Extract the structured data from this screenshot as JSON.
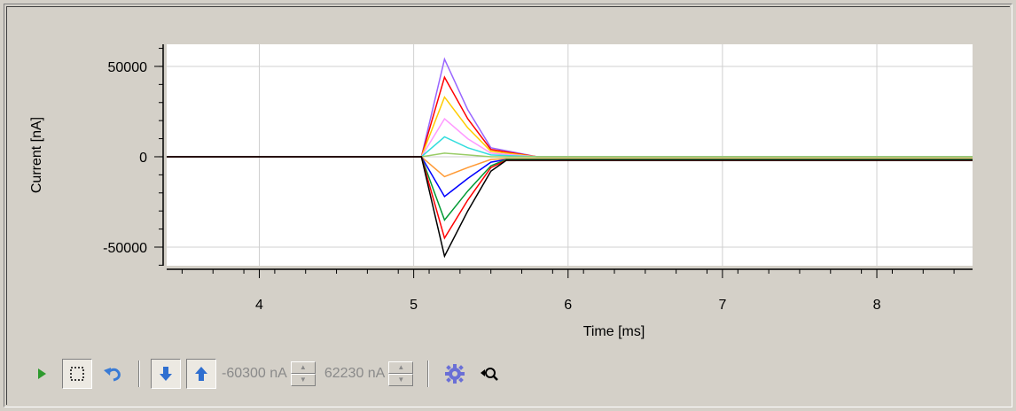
{
  "chart_data": {
    "type": "line",
    "xlabel": "Time [ms]",
    "ylabel": "Current [nA]",
    "xlim": [
      3.4,
      8.62
    ],
    "ylim": [
      -60300,
      62230
    ],
    "xticks": [
      4,
      5,
      6,
      7,
      8
    ],
    "yticks": [
      50000,
      0,
      -50000
    ],
    "xtick_labels": [
      "4",
      "5",
      "6",
      "7",
      "8"
    ],
    "ytick_labels": [
      "50000",
      "0",
      "-50000"
    ],
    "grid": true,
    "legend": "none",
    "series": [
      {
        "color": "#9966ff",
        "x": [
          3.4,
          5.05,
          5.2,
          5.35,
          5.5,
          5.8,
          8.62
        ],
        "y": [
          0,
          0,
          54000,
          26000,
          5000,
          0,
          0
        ]
      },
      {
        "color": "#ff0000",
        "x": [
          3.4,
          5.05,
          5.2,
          5.35,
          5.5,
          5.8,
          8.62
        ],
        "y": [
          0,
          0,
          44000,
          21000,
          4000,
          0,
          0
        ]
      },
      {
        "color": "#ffcc00",
        "x": [
          3.4,
          5.05,
          5.2,
          5.35,
          5.5,
          5.8,
          8.62
        ],
        "y": [
          0,
          0,
          33000,
          16000,
          3000,
          0,
          0
        ]
      },
      {
        "color": "#ff99ff",
        "x": [
          3.4,
          5.05,
          5.2,
          5.35,
          5.5,
          5.8,
          8.62
        ],
        "y": [
          0,
          0,
          21000,
          10000,
          2000,
          0,
          0
        ]
      },
      {
        "color": "#33dddd",
        "x": [
          3.4,
          5.05,
          5.2,
          5.35,
          5.5,
          5.8,
          8.62
        ],
        "y": [
          0,
          0,
          11000,
          5000,
          1000,
          0,
          0
        ]
      },
      {
        "color": "#99cc66",
        "x": [
          3.4,
          5.05,
          5.2,
          5.35,
          5.5,
          5.8,
          8.62
        ],
        "y": [
          0,
          0,
          2000,
          1000,
          0,
          0,
          0
        ]
      },
      {
        "color": "#ff9933",
        "x": [
          3.4,
          5.05,
          5.2,
          5.35,
          5.5,
          5.6,
          8.62
        ],
        "y": [
          0,
          0,
          -11000,
          -6000,
          -1500,
          -1000,
          -1000
        ]
      },
      {
        "color": "#0000ff",
        "x": [
          3.4,
          5.05,
          5.2,
          5.35,
          5.5,
          5.6,
          8.62
        ],
        "y": [
          0,
          0,
          -22000,
          -12000,
          -3000,
          -1500,
          -1500
        ]
      },
      {
        "color": "#009933",
        "x": [
          3.4,
          5.05,
          5.2,
          5.35,
          5.5,
          5.6,
          8.62
        ],
        "y": [
          0,
          0,
          -35000,
          -19000,
          -5000,
          -1500,
          -1500
        ]
      },
      {
        "color": "#ff0000",
        "x": [
          3.4,
          5.05,
          5.2,
          5.35,
          5.5,
          5.6,
          8.62
        ],
        "y": [
          0,
          0,
          -45000,
          -24000,
          -6000,
          -2000,
          -2000
        ]
      },
      {
        "color": "#000000",
        "x": [
          3.4,
          5.05,
          5.2,
          5.35,
          5.5,
          5.6,
          8.62
        ],
        "y": [
          0,
          0,
          -55000,
          -30000,
          -8000,
          -2000,
          -2000
        ]
      }
    ]
  },
  "toolbar": {
    "play_icon": "play-icon",
    "select_icon": "selection-icon",
    "undo_icon": "undo-icon",
    "down_icon": "arrow-down-icon",
    "up_icon": "arrow-up-icon",
    "min_value": "-60300 nA",
    "max_value": "62230 nA",
    "settings_icon": "gear-icon",
    "zoom_icon": "zoom-icon"
  },
  "colors": {
    "background": "#d4d0c8",
    "plot_background": "#ffffff",
    "grid": "#d0d0d0"
  }
}
